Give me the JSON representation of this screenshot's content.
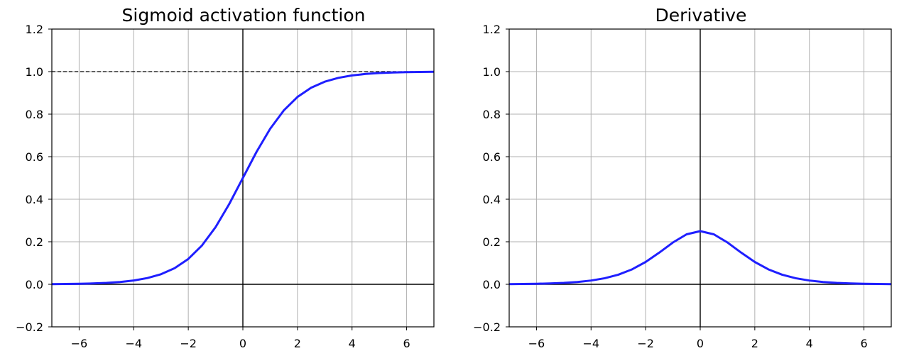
{
  "figure": {
    "background": "#ffffff"
  },
  "chart_data": [
    {
      "type": "line",
      "title": "Sigmoid activation function",
      "xlabel": "",
      "ylabel": "",
      "xlim": [
        -7,
        7
      ],
      "ylim": [
        -0.2,
        1.2
      ],
      "xticks": [
        -6,
        -4,
        -2,
        0,
        2,
        4,
        6
      ],
      "yticks": [
        -0.2,
        0.0,
        0.2,
        0.4,
        0.6,
        0.8,
        1.0,
        1.2
      ],
      "xtick_labels": [
        "−6",
        "−4",
        "−2",
        "0",
        "2",
        "4",
        "6"
      ],
      "ytick_labels": [
        "−0.2",
        "0.0",
        "0.2",
        "0.4",
        "0.6",
        "0.8",
        "1.0",
        "1.2"
      ],
      "grid": true,
      "reference_lines": [
        {
          "orientation": "horizontal",
          "value": 0,
          "style": "solid",
          "color": "#000000"
        },
        {
          "orientation": "vertical",
          "value": 0,
          "style": "solid",
          "color": "#000000"
        },
        {
          "orientation": "horizontal",
          "value": 1,
          "style": "dashed",
          "color": "#000000",
          "x_range": [
            -7,
            7
          ]
        }
      ],
      "series": [
        {
          "color": "#1f1fff",
          "x": [
            -7,
            -6.5,
            -6,
            -5.5,
            -5,
            -4.5,
            -4,
            -3.5,
            -3,
            -2.5,
            -2,
            -1.5,
            -1,
            -0.5,
            0,
            0.5,
            1,
            1.5,
            2,
            2.5,
            3,
            3.5,
            4,
            4.5,
            5,
            5.5,
            6,
            6.5,
            7
          ],
          "y": [
            0.001,
            0.0015,
            0.0025,
            0.0041,
            0.0067,
            0.011,
            0.018,
            0.0293,
            0.0474,
            0.0759,
            0.1192,
            0.1824,
            0.2689,
            0.3775,
            0.5,
            0.6225,
            0.7311,
            0.8176,
            0.8808,
            0.9241,
            0.9526,
            0.9707,
            0.982,
            0.989,
            0.9933,
            0.9959,
            0.9975,
            0.9985,
            0.999
          ]
        }
      ]
    },
    {
      "type": "line",
      "title": "Derivative",
      "xlabel": "",
      "ylabel": "",
      "xlim": [
        -7,
        7
      ],
      "ylim": [
        -0.2,
        1.2
      ],
      "xticks": [
        -6,
        -4,
        -2,
        0,
        2,
        4,
        6
      ],
      "yticks": [
        -0.2,
        0.0,
        0.2,
        0.4,
        0.6,
        0.8,
        1.0,
        1.2
      ],
      "xtick_labels": [
        "−6",
        "−4",
        "−2",
        "0",
        "2",
        "4",
        "6"
      ],
      "ytick_labels": [
        "−0.2",
        "0.0",
        "0.2",
        "0.4",
        "0.6",
        "0.8",
        "1.0",
        "1.2"
      ],
      "grid": true,
      "reference_lines": [
        {
          "orientation": "horizontal",
          "value": 0,
          "style": "solid",
          "color": "#000000"
        },
        {
          "orientation": "vertical",
          "value": 0,
          "style": "solid",
          "color": "#000000"
        }
      ],
      "series": [
        {
          "color": "#1f1fff",
          "x": [
            -7,
            -6.5,
            -6,
            -5.5,
            -5,
            -4.5,
            -4,
            -3.5,
            -3,
            -2.5,
            -2,
            -1.5,
            -1,
            -0.5,
            0,
            0.5,
            1,
            1.5,
            2,
            2.5,
            3,
            3.5,
            4,
            4.5,
            5,
            5.5,
            6,
            6.5,
            7
          ],
          "y": [
            0.0009,
            0.0015,
            0.0025,
            0.0041,
            0.0066,
            0.0109,
            0.0177,
            0.0285,
            0.0452,
            0.0701,
            0.105,
            0.1491,
            0.1966,
            0.235,
            0.25,
            0.235,
            0.1966,
            0.1491,
            0.105,
            0.0701,
            0.0452,
            0.0285,
            0.0177,
            0.0109,
            0.0066,
            0.0041,
            0.0025,
            0.0015,
            0.0009
          ]
        }
      ]
    }
  ]
}
